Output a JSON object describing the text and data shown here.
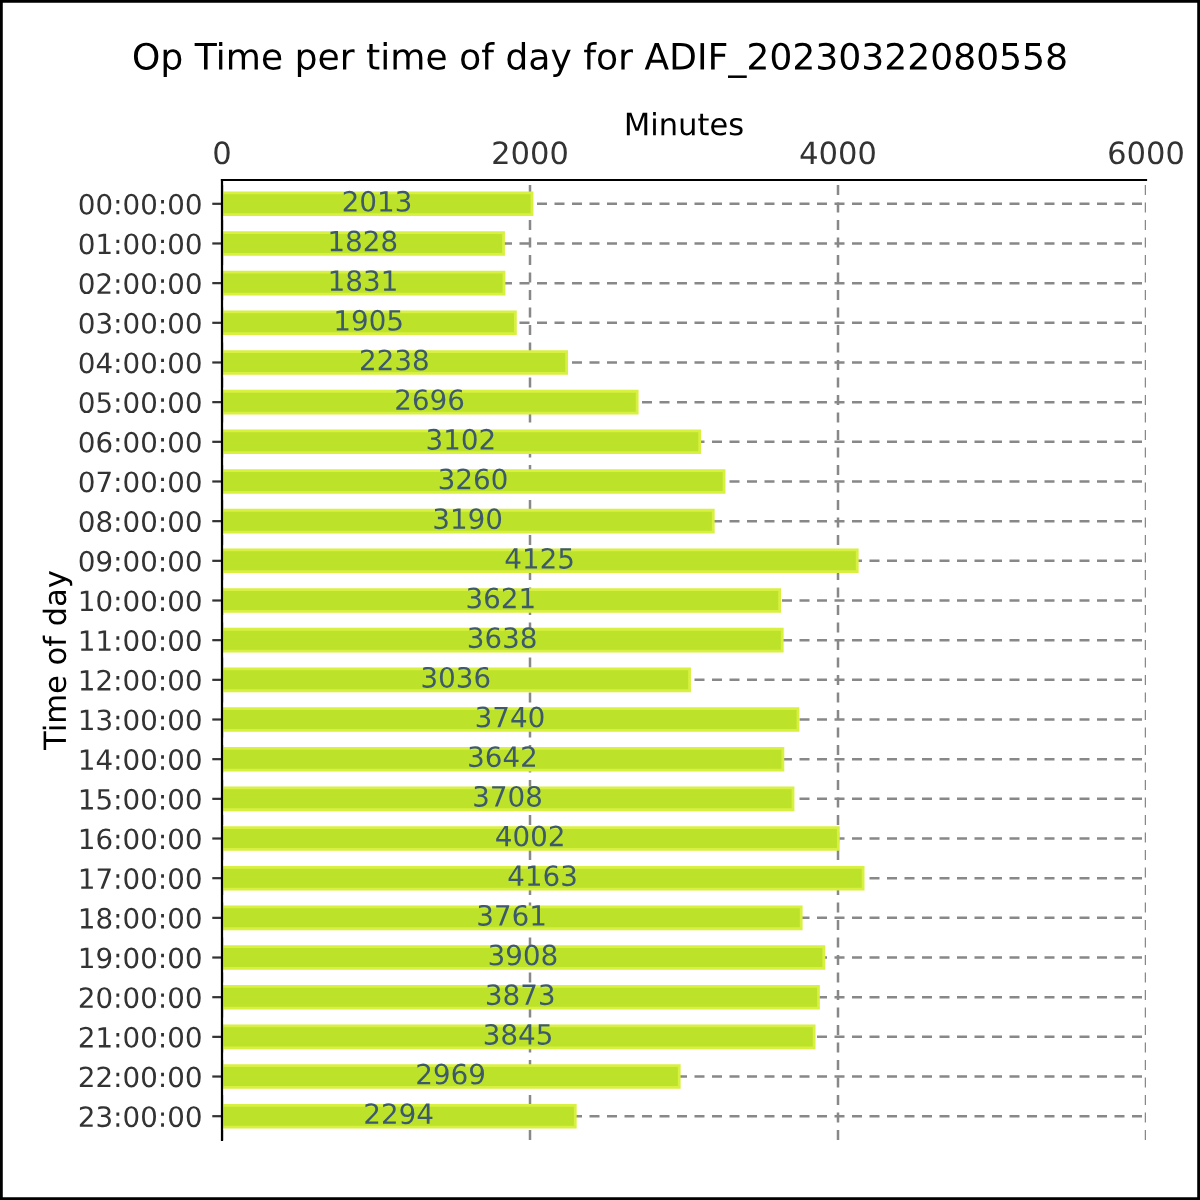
{
  "chart_data": {
    "type": "bar",
    "orientation": "horizontal",
    "title": "Op Time per time of day for ADIF_20230322080558",
    "xlabel": "Minutes",
    "ylabel": "Time of day",
    "categories": [
      "00:00:00",
      "01:00:00",
      "02:00:00",
      "03:00:00",
      "04:00:00",
      "05:00:00",
      "06:00:00",
      "07:00:00",
      "08:00:00",
      "09:00:00",
      "10:00:00",
      "11:00:00",
      "12:00:00",
      "13:00:00",
      "14:00:00",
      "15:00:00",
      "16:00:00",
      "17:00:00",
      "18:00:00",
      "19:00:00",
      "20:00:00",
      "21:00:00",
      "22:00:00",
      "23:00:00"
    ],
    "values": [
      2013,
      1828,
      1831,
      1905,
      2238,
      2696,
      3102,
      3260,
      3190,
      4125,
      3621,
      3638,
      3036,
      3740,
      3642,
      3708,
      4002,
      4163,
      3761,
      3908,
      3873,
      3845,
      2969,
      2294
    ],
    "color": "#bde22a",
    "xlim": [
      0,
      6000
    ],
    "xticks": [
      0,
      2000,
      4000,
      6000
    ],
    "grid": true,
    "data_labels": true
  }
}
